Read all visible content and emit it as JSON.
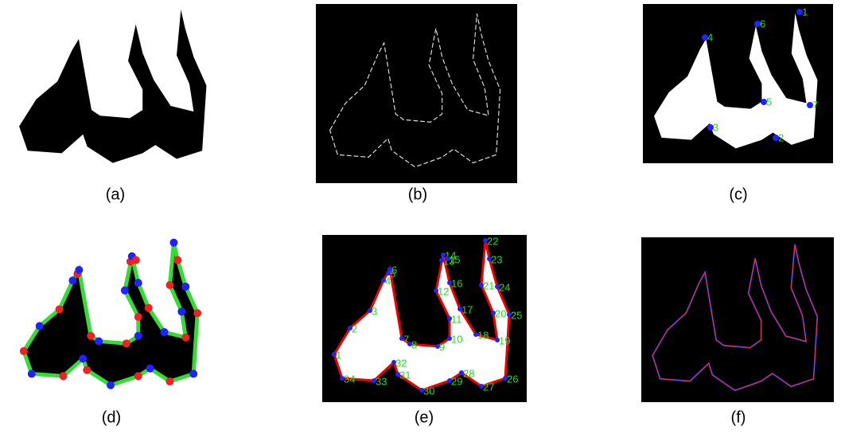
{
  "captions": [
    "(a)",
    "(b)",
    "(c)",
    "(d)",
    "(e)",
    "(f)"
  ],
  "panel_c": {
    "labels": [
      "1",
      "2",
      "3",
      "4",
      "5",
      "6",
      "7"
    ]
  },
  "panel_e": {
    "labels": [
      "1",
      "2",
      "3",
      "4",
      "5",
      "6",
      "7",
      "8",
      "9",
      "10",
      "11",
      "12",
      "13",
      "14",
      "15",
      "16",
      "17",
      "18",
      "19",
      "20",
      "21",
      "22",
      "23",
      "24",
      "25",
      "26",
      "27",
      "28",
      "29",
      "30",
      "31",
      "32",
      "33",
      "34"
    ]
  }
}
